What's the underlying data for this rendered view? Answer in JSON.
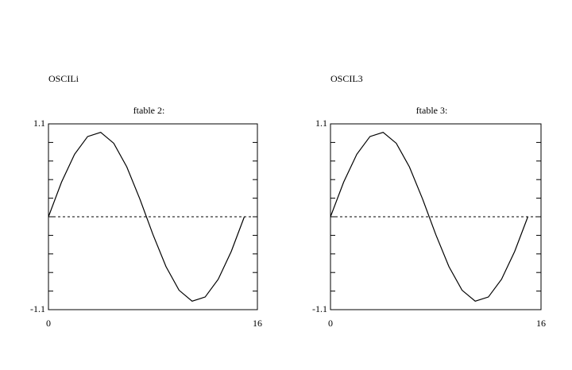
{
  "chart_data": [
    {
      "type": "line",
      "title": "OSCILi",
      "subtitle": "ftable 2:",
      "x": [
        0,
        1,
        2,
        3,
        4,
        5,
        6,
        7,
        8,
        9,
        10,
        11,
        12,
        13,
        14,
        15
      ],
      "series": [
        {
          "color": "#000000",
          "values": [
            0,
            0.41,
            0.74,
            0.95,
            1.0,
            0.87,
            0.59,
            0.21,
            -0.21,
            -0.59,
            -0.87,
            -1.0,
            -0.95,
            -0.74,
            -0.41,
            0
          ]
        }
      ],
      "xlim": [
        0,
        16
      ],
      "xticks": [
        0,
        16
      ],
      "ylim": [
        -1.1,
        1.1
      ],
      "yticks": [
        -1.1,
        1.1
      ]
    },
    {
      "type": "line",
      "title": "OSCIL3",
      "subtitle": "ftable 3:",
      "x": [
        0,
        1,
        2,
        3,
        4,
        5,
        6,
        7,
        8,
        9,
        10,
        11,
        12,
        13,
        14,
        15
      ],
      "series": [
        {
          "color": "#000000",
          "values": [
            0,
            0.41,
            0.74,
            0.95,
            1.0,
            0.87,
            0.59,
            0.21,
            -0.21,
            -0.59,
            -0.87,
            -1.0,
            -0.95,
            -0.74,
            -0.41,
            0
          ]
        }
      ],
      "xlim": [
        0,
        16
      ],
      "xticks": [
        0,
        16
      ],
      "ylim": [
        -1.1,
        1.1
      ],
      "yticks": [
        -1.1,
        1.1
      ]
    }
  ]
}
